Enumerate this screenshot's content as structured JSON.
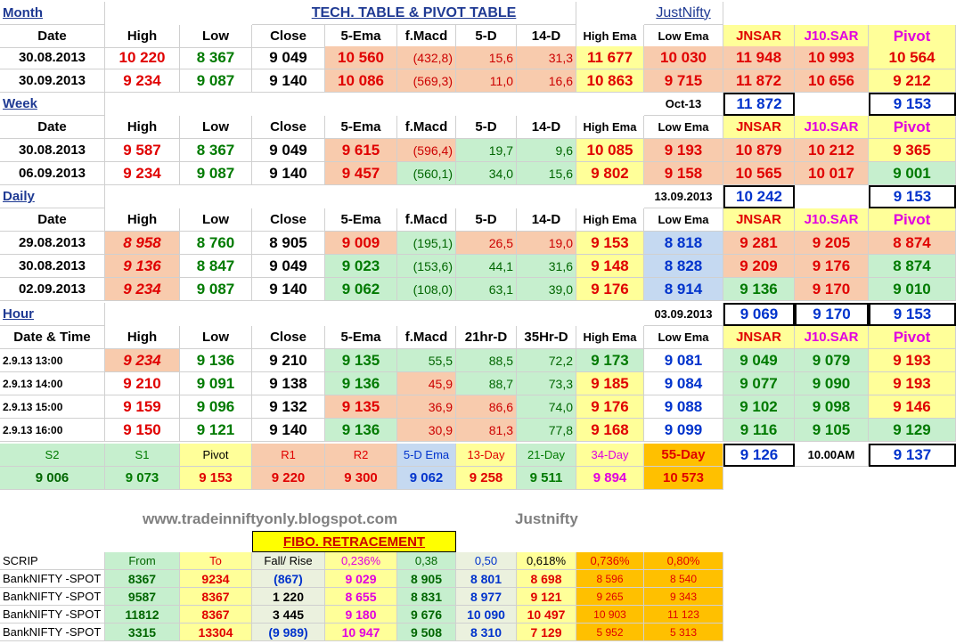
{
  "title": "TECH. TABLE  &  PIVOT TABLE",
  "brand": "JustNifty",
  "sections": {
    "month": "Month",
    "week": "Week",
    "daily": "Daily",
    "hour": "Hour"
  },
  "headers": [
    "Date",
    "High",
    "Low",
    "Close",
    "5-Ema",
    "f.Macd",
    "5-D",
    "14-D",
    "High Ema",
    "Low Ema",
    "JNSAR",
    "J10.SAR",
    "Pivot"
  ],
  "hour_headers": [
    "Date & Time",
    "High",
    "Low",
    "Close",
    "5-Ema",
    "f.Macd",
    "21hr-D",
    "35Hr-D",
    "High Ema",
    "Low Ema",
    "JNSAR",
    "J10.SAR",
    "Pivot"
  ],
  "month_rows": [
    [
      "30.08.2013",
      "10 220",
      "8 367",
      "9 049",
      "10 560",
      "(432,8)",
      "15,6",
      "31,3",
      "11 677",
      "10 030",
      "11 948",
      "10 993",
      "10 564"
    ],
    [
      "30.09.2013",
      "9 234",
      "9 087",
      "9 140",
      "10 086",
      "(569,3)",
      "11,0",
      "16,6",
      "10 863",
      "9 715",
      "11 872",
      "10 656",
      "9 212"
    ]
  ],
  "month_summary": {
    "label": "Oct-13",
    "jnsar": "11 872",
    "pivot": "9 153"
  },
  "week_rows": [
    [
      "30.08.2013",
      "9 587",
      "8 367",
      "9 049",
      "9 615",
      "(596,4)",
      "19,7",
      "9,6",
      "10 085",
      "9 193",
      "10 879",
      "10 212",
      "9 365"
    ],
    [
      "06.09.2013",
      "9 234",
      "9 087",
      "9 140",
      "9 457",
      "(560,1)",
      "34,0",
      "15,6",
      "9 802",
      "9 158",
      "10 565",
      "10 017",
      "9 001"
    ]
  ],
  "week_summary": {
    "label": "13.09.2013",
    "jnsar": "10 242",
    "pivot": "9 153"
  },
  "daily_rows": [
    [
      "29.08.2013",
      "8 958",
      "8 760",
      "8 905",
      "9 009",
      "(195,1)",
      "26,5",
      "19,0",
      "9 153",
      "8 818",
      "9 281",
      "9 205",
      "8 874"
    ],
    [
      "30.08.2013",
      "9 136",
      "8 847",
      "9 049",
      "9 023",
      "(153,6)",
      "44,1",
      "31,6",
      "9 148",
      "8 828",
      "9 209",
      "9 176",
      "8 874"
    ],
    [
      "02.09.2013",
      "9 234",
      "9 087",
      "9 140",
      "9 062",
      "(108,0)",
      "63,1",
      "39,0",
      "9 176",
      "8 914",
      "9 136",
      "9 170",
      "9 010"
    ]
  ],
  "daily_summary": {
    "label": "03.09.2013",
    "jnsar": "9 069",
    "j10": "9 170",
    "pivot": "9 153"
  },
  "hour_rows": [
    [
      "2.9.13 13:00",
      "9 234",
      "9 136",
      "9 210",
      "9 135",
      "55,5",
      "88,5",
      "72,2",
      "9 173",
      "9 081",
      "9 049",
      "9 079",
      "9 193"
    ],
    [
      "2.9.13 14:00",
      "9 210",
      "9 091",
      "9 138",
      "9 136",
      "45,9",
      "88,7",
      "73,3",
      "9 185",
      "9 084",
      "9 077",
      "9 090",
      "9 193"
    ],
    [
      "2.9.13 15:00",
      "9 159",
      "9 096",
      "9 132",
      "9 135",
      "36,9",
      "86,6",
      "74,0",
      "9 176",
      "9 088",
      "9 102",
      "9 098",
      "9 146"
    ],
    [
      "2.9.13 16:00",
      "9 150",
      "9 121",
      "9 140",
      "9 136",
      "30,9",
      "81,3",
      "77,8",
      "9 168",
      "9 099",
      "9 116",
      "9 105",
      "9 129"
    ]
  ],
  "levels_labels": [
    "S2",
    "S1",
    "Pivot",
    "R1",
    "R2",
    "5-D Ema",
    "13-Day",
    "21-Day",
    "34-Day",
    "55-Day"
  ],
  "levels_values": [
    "9 006",
    "9 073",
    "9 153",
    "9 220",
    "9 300",
    "9 062",
    "9 258",
    "9 511",
    "9 894",
    "10 573"
  ],
  "hour_summary": {
    "jnsar": "9 126",
    "time": "10.00AM",
    "pivot": "9 137"
  },
  "website": "www.tradeinniftyonly.blogspot.com",
  "website_brand": "Justnifty",
  "fibo_title": "FIBO. RETRACEMENT",
  "fibo_headers": [
    "SCRIP",
    "From",
    "To",
    "Fall/ Rise",
    "0,236%",
    "0,38",
    "0,50",
    "0,618%",
    "0,736%",
    "0,80%"
  ],
  "fibo_rows": [
    [
      "BankNIFTY -SPOT",
      "8367",
      "9234",
      "(867)",
      "9 029",
      "8 905",
      "8 801",
      "8 698",
      "8 596",
      "8 540"
    ],
    [
      "BankNIFTY -SPOT",
      "9587",
      "8367",
      "1 220",
      "8 655",
      "8 831",
      "8 977",
      "9 121",
      "9 265",
      "9 343"
    ],
    [
      "BankNIFTY -SPOT",
      "11812",
      "8367",
      "3 445",
      "9 180",
      "9 676",
      "10 090",
      "10 497",
      "10 903",
      "11 123"
    ],
    [
      "BankNIFTY -SPOT",
      "3315",
      "13304",
      "(9 989)",
      "10 947",
      "9 508",
      "8 310",
      "7 129",
      "5 952",
      "5 313"
    ]
  ],
  "colors": {
    "red": "#e00000",
    "green": "#007a00",
    "blue": "#0033cc",
    "magenta": "#e000e0",
    "orange_fill": "#f8cbad",
    "yellow_fill": "#ffff99",
    "green_fill": "#c6efce",
    "blue_fill": "#c5d9f1"
  }
}
